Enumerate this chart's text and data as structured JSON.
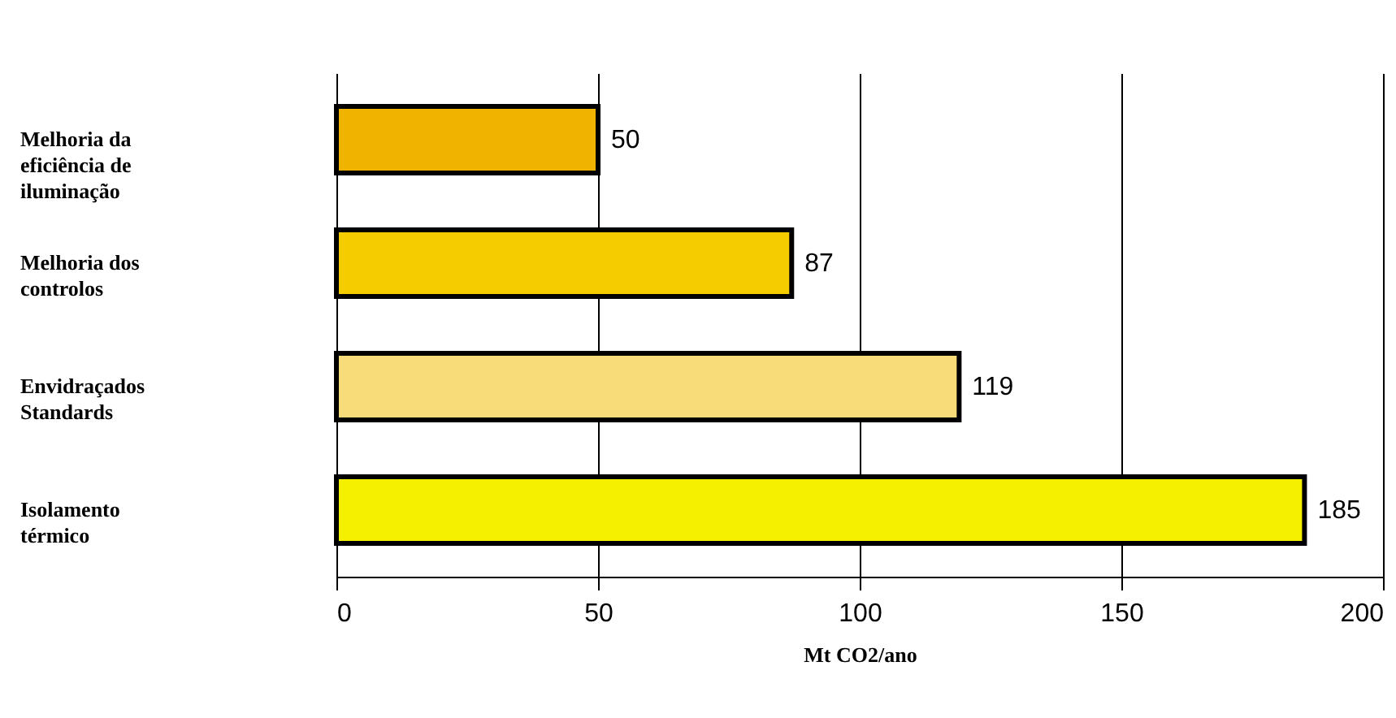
{
  "chart_data": {
    "type": "bar",
    "orientation": "horizontal",
    "xlabel": "Mt CO2/ano",
    "categories": [
      "Melhoria da eficiência de iluminação",
      "Melhoria dos controlos",
      "Envidraçados Standards",
      "Isolamento térmico"
    ],
    "values": [
      50,
      87,
      119,
      185
    ],
    "colors": [
      "#f0b400",
      "#f5cc00",
      "#f9dc7a",
      "#f5f000"
    ],
    "xlim": [
      0,
      200
    ],
    "xticks": [
      0,
      50,
      100,
      150,
      200
    ],
    "grid": "x",
    "data_labels": true
  }
}
